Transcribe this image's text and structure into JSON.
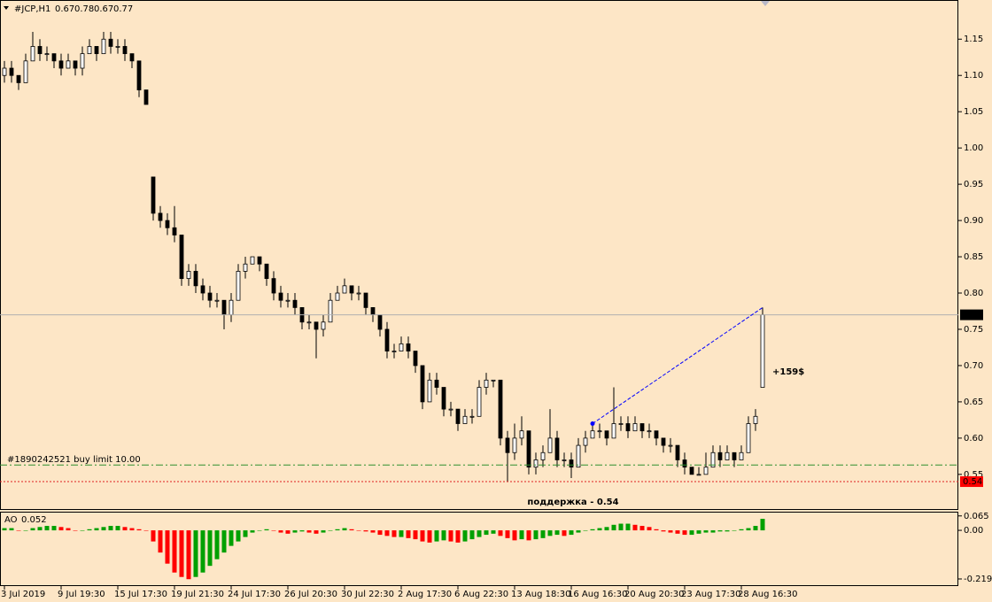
{
  "chart_data": [
    {
      "type": "candlestick",
      "title": "#JCP,H1",
      "ohlc_header": [
        0.67,
        0.78,
        0.67,
        0.77
      ],
      "categories": [
        "3 Jul 2019",
        null,
        null,
        null,
        null,
        null,
        null,
        null,
        "9 Jul 19:30",
        null,
        null,
        null,
        null,
        null,
        null,
        null,
        "15 Jul 17:30",
        null,
        null,
        null,
        null,
        null,
        null,
        null,
        "19 Jul 21:30",
        null,
        null,
        null,
        null,
        null,
        null,
        null,
        "24 Jul 17:30",
        null,
        null,
        null,
        null,
        null,
        null,
        null,
        "26 Jul 20:30",
        null,
        null,
        null,
        null,
        null,
        null,
        null,
        "30 Jul 22:30",
        null,
        null,
        null,
        null,
        null,
        null,
        null,
        "2 Aug 17:30",
        null,
        null,
        null,
        null,
        null,
        null,
        null,
        "6 Aug 22:30",
        null,
        null,
        null,
        null,
        null,
        null,
        null,
        "13 Aug 18:30",
        null,
        null,
        null,
        null,
        null,
        null,
        null,
        "16 Aug 16:30",
        null,
        null,
        null,
        null,
        null,
        null,
        null,
        "20 Aug 20:30",
        null,
        null,
        null,
        null,
        null,
        null,
        null,
        "23 Aug 17:30",
        null,
        null,
        null,
        null,
        null,
        null,
        null,
        "28 Aug 16:30",
        null,
        null,
        null
      ],
      "candles": [
        [
          1.1,
          1.12,
          1.09,
          1.11
        ],
        [
          1.11,
          1.12,
          1.09,
          1.1
        ],
        [
          1.1,
          1.1,
          1.08,
          1.09
        ],
        [
          1.09,
          1.13,
          1.09,
          1.12
        ],
        [
          1.12,
          1.16,
          1.12,
          1.14
        ],
        [
          1.14,
          1.15,
          1.12,
          1.13
        ],
        [
          1.13,
          1.14,
          1.12,
          1.13
        ],
        [
          1.13,
          1.13,
          1.11,
          1.12
        ],
        [
          1.12,
          1.13,
          1.1,
          1.11
        ],
        [
          1.11,
          1.13,
          1.11,
          1.12
        ],
        [
          1.12,
          1.12,
          1.1,
          1.11
        ],
        [
          1.11,
          1.14,
          1.1,
          1.13
        ],
        [
          1.13,
          1.15,
          1.13,
          1.14
        ],
        [
          1.14,
          1.14,
          1.12,
          1.13
        ],
        [
          1.13,
          1.16,
          1.13,
          1.15
        ],
        [
          1.15,
          1.16,
          1.13,
          1.14
        ],
        [
          1.14,
          1.15,
          1.13,
          1.14
        ],
        [
          1.14,
          1.15,
          1.12,
          1.13
        ],
        [
          1.13,
          1.13,
          1.11,
          1.12
        ],
        [
          1.12,
          1.12,
          1.07,
          1.08
        ],
        [
          1.08,
          1.08,
          1.06,
          1.06
        ],
        [
          0.96,
          0.96,
          0.9,
          0.91
        ],
        [
          0.91,
          0.92,
          0.89,
          0.9
        ],
        [
          0.9,
          0.91,
          0.88,
          0.89
        ],
        [
          0.89,
          0.92,
          0.87,
          0.88
        ],
        [
          0.88,
          0.88,
          0.81,
          0.82
        ],
        [
          0.82,
          0.84,
          0.81,
          0.83
        ],
        [
          0.83,
          0.84,
          0.8,
          0.81
        ],
        [
          0.81,
          0.82,
          0.79,
          0.8
        ],
        [
          0.8,
          0.81,
          0.78,
          0.79
        ],
        [
          0.79,
          0.8,
          0.78,
          0.79
        ],
        [
          0.79,
          0.79,
          0.75,
          0.77
        ],
        [
          0.77,
          0.8,
          0.76,
          0.79
        ],
        [
          0.79,
          0.84,
          0.79,
          0.83
        ],
        [
          0.83,
          0.85,
          0.82,
          0.84
        ],
        [
          0.84,
          0.85,
          0.84,
          0.85
        ],
        [
          0.85,
          0.85,
          0.83,
          0.84
        ],
        [
          0.84,
          0.84,
          0.81,
          0.82
        ],
        [
          0.82,
          0.83,
          0.79,
          0.8
        ],
        [
          0.8,
          0.81,
          0.78,
          0.79
        ],
        [
          0.79,
          0.8,
          0.78,
          0.79
        ],
        [
          0.79,
          0.8,
          0.77,
          0.78
        ],
        [
          0.78,
          0.78,
          0.75,
          0.76
        ],
        [
          0.76,
          0.77,
          0.75,
          0.76
        ],
        [
          0.76,
          0.76,
          0.71,
          0.75
        ],
        [
          0.75,
          0.77,
          0.74,
          0.76
        ],
        [
          0.76,
          0.8,
          0.76,
          0.79
        ],
        [
          0.79,
          0.81,
          0.79,
          0.8
        ],
        [
          0.8,
          0.82,
          0.8,
          0.81
        ],
        [
          0.81,
          0.81,
          0.79,
          0.8
        ],
        [
          0.8,
          0.81,
          0.79,
          0.8
        ],
        [
          0.8,
          0.8,
          0.77,
          0.78
        ],
        [
          0.78,
          0.78,
          0.76,
          0.77
        ],
        [
          0.77,
          0.77,
          0.74,
          0.75
        ],
        [
          0.75,
          0.76,
          0.71,
          0.72
        ],
        [
          0.72,
          0.73,
          0.71,
          0.72
        ],
        [
          0.72,
          0.74,
          0.72,
          0.73
        ],
        [
          0.73,
          0.74,
          0.71,
          0.72
        ],
        [
          0.72,
          0.72,
          0.69,
          0.7
        ],
        [
          0.7,
          0.7,
          0.64,
          0.65
        ],
        [
          0.65,
          0.69,
          0.65,
          0.68
        ],
        [
          0.68,
          0.69,
          0.66,
          0.67
        ],
        [
          0.67,
          0.67,
          0.63,
          0.64
        ],
        [
          0.64,
          0.65,
          0.63,
          0.64
        ],
        [
          0.64,
          0.64,
          0.61,
          0.62
        ],
        [
          0.62,
          0.64,
          0.62,
          0.63
        ],
        [
          0.63,
          0.64,
          0.62,
          0.63
        ],
        [
          0.63,
          0.68,
          0.63,
          0.67
        ],
        [
          0.67,
          0.69,
          0.66,
          0.68
        ],
        [
          0.68,
          0.68,
          0.67,
          0.68
        ],
        [
          0.68,
          0.68,
          0.59,
          0.6
        ],
        [
          0.6,
          0.61,
          0.54,
          0.58
        ],
        [
          0.58,
          0.62,
          0.57,
          0.6
        ],
        [
          0.6,
          0.63,
          0.59,
          0.61
        ],
        [
          0.61,
          0.61,
          0.55,
          0.56
        ],
        [
          0.56,
          0.58,
          0.55,
          0.57
        ],
        [
          0.57,
          0.59,
          0.56,
          0.58
        ],
        [
          0.58,
          0.64,
          0.58,
          0.6
        ],
        [
          0.6,
          0.61,
          0.56,
          0.57
        ],
        [
          0.57,
          0.58,
          0.56,
          0.57
        ],
        [
          0.57,
          0.58,
          0.545,
          0.56
        ],
        [
          0.56,
          0.6,
          0.56,
          0.59
        ],
        [
          0.59,
          0.61,
          0.58,
          0.6
        ],
        [
          0.6,
          0.62,
          0.6,
          0.61
        ],
        [
          0.61,
          0.62,
          0.6,
          0.61
        ],
        [
          0.61,
          0.61,
          0.59,
          0.6
        ],
        [
          0.6,
          0.67,
          0.6,
          0.62
        ],
        [
          0.62,
          0.63,
          0.61,
          0.62
        ],
        [
          0.62,
          0.63,
          0.6,
          0.61
        ],
        [
          0.61,
          0.63,
          0.61,
          0.62
        ],
        [
          0.62,
          0.62,
          0.6,
          0.61
        ],
        [
          0.61,
          0.62,
          0.6,
          0.61
        ],
        [
          0.61,
          0.61,
          0.59,
          0.6
        ],
        [
          0.6,
          0.6,
          0.58,
          0.59
        ],
        [
          0.59,
          0.6,
          0.58,
          0.59
        ],
        [
          0.59,
          0.59,
          0.56,
          0.57
        ],
        [
          0.57,
          0.58,
          0.55,
          0.56
        ],
        [
          0.56,
          0.56,
          0.55,
          0.55
        ],
        [
          0.55,
          0.56,
          0.55,
          0.55
        ],
        [
          0.55,
          0.58,
          0.55,
          0.56
        ],
        [
          0.56,
          0.59,
          0.56,
          0.58
        ],
        [
          0.58,
          0.59,
          0.56,
          0.57
        ],
        [
          0.57,
          0.59,
          0.57,
          0.58
        ],
        [
          0.58,
          0.58,
          0.56,
          0.57
        ],
        [
          0.57,
          0.59,
          0.57,
          0.58
        ],
        [
          0.58,
          0.63,
          0.58,
          0.62
        ],
        [
          0.62,
          0.64,
          0.61,
          0.63
        ],
        [
          0.67,
          0.78,
          0.67,
          0.77
        ]
      ],
      "up_color": "#ffffff",
      "down_color": "#000000",
      "ylim": [
        0.501,
        1.204
      ],
      "yticks": [
        0.55,
        {
          "value": 0.6,
          "label": "0.60"
        },
        0.65,
        {
          "value": 0.7,
          "label": "0.70"
        },
        0.75,
        {
          "value": 0.8,
          "label": "0.80"
        },
        0.85,
        {
          "value": 0.9,
          "label": "0.90"
        },
        0.95,
        {
          "value": 1.0,
          "label": "1.00"
        },
        1.05,
        {
          "value": 1.1,
          "label": "1.10"
        },
        1.15
      ],
      "current_price": 0.77,
      "support": {
        "value": 0.54,
        "label": "поддержка - 0.54"
      },
      "order": {
        "label": "#1890242521 buy limit 10.00",
        "value": 0.563
      },
      "trendline": {
        "x": [
          83,
          107
        ],
        "y": [
          0.62,
          0.78
        ],
        "color": "#0000ff"
      },
      "profit_label": "+159$"
    },
    {
      "type": "bar",
      "title": "AO",
      "last_value": 0.052,
      "values": [
        0.01,
        0.01,
        0.0,
        0.0,
        0.01,
        0.015,
        0.02,
        0.02,
        0.015,
        0.01,
        0.0,
        0.0,
        0.005,
        0.01,
        0.015,
        0.02,
        0.02,
        0.015,
        0.01,
        0.005,
        0.0,
        -0.05,
        -0.1,
        -0.15,
        -0.19,
        -0.21,
        -0.22,
        -0.21,
        -0.19,
        -0.16,
        -0.13,
        -0.1,
        -0.07,
        -0.05,
        -0.03,
        -0.01,
        0.0,
        0.005,
        0.0,
        -0.01,
        -0.015,
        -0.01,
        -0.005,
        -0.01,
        -0.015,
        -0.01,
        0.0,
        0.005,
        0.01,
        0.005,
        0.0,
        -0.005,
        -0.01,
        -0.02,
        -0.025,
        -0.03,
        -0.03,
        -0.035,
        -0.04,
        -0.05,
        -0.055,
        -0.05,
        -0.045,
        -0.05,
        -0.055,
        -0.05,
        -0.04,
        -0.03,
        -0.02,
        -0.015,
        -0.025,
        -0.035,
        -0.045,
        -0.04,
        -0.045,
        -0.04,
        -0.035,
        -0.025,
        -0.02,
        -0.025,
        -0.02,
        -0.01,
        0.0,
        0.005,
        0.01,
        0.015,
        0.025,
        0.03,
        0.03,
        0.025,
        0.02,
        0.015,
        0.005,
        -0.005,
        -0.01,
        -0.015,
        -0.02,
        -0.02,
        -0.015,
        -0.01,
        -0.01,
        -0.005,
        -0.005,
        0.0,
        0.005,
        0.01,
        0.02,
        0.052
      ],
      "up_color": "#00a000",
      "down_color": "#ff0000",
      "ylim": [
        -0.251,
        0.084
      ],
      "yticks": [
        0.065,
        {
          "value": 0,
          "label": "0.00"
        },
        -0.219
      ]
    }
  ]
}
